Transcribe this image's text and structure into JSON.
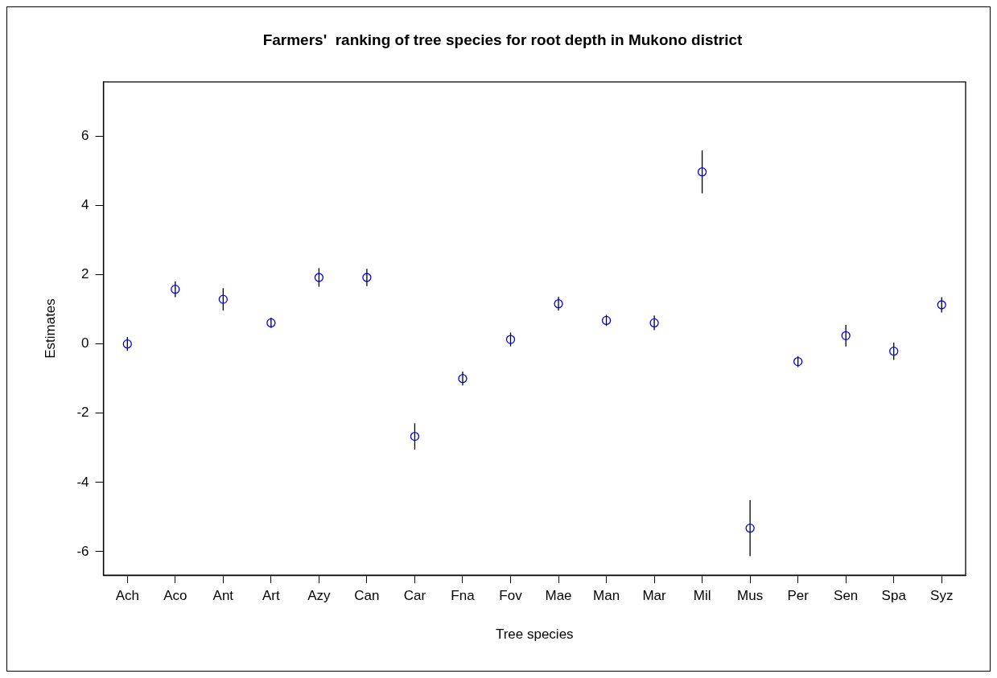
{
  "chart_data": {
    "type": "scatter",
    "title": "Farmers'  ranking of tree species for root depth in Mukono district",
    "xlabel": "Tree species",
    "ylabel": "Estimates",
    "categories": [
      "Ach",
      "Aco",
      "Ant",
      "Art",
      "Azy",
      "Can",
      "Car",
      "Fna",
      "Fov",
      "Mae",
      "Man",
      "Mar",
      "Mil",
      "Mus",
      "Per",
      "Sen",
      "Spa",
      "Syz"
    ],
    "series": [
      {
        "color": "#0000ff",
        "values": [
          0,
          1.58,
          1.29,
          0.61,
          1.92,
          1.92,
          -2.67,
          -1.0,
          0.13,
          1.16,
          0.68,
          0.61,
          4.97,
          -5.32,
          -0.51,
          0.24,
          -0.21,
          1.13
        ],
        "errors": [
          0.2,
          0.23,
          0.32,
          0.15,
          0.27,
          0.25,
          0.38,
          0.2,
          0.2,
          0.2,
          0.16,
          0.21,
          0.62,
          0.81,
          0.16,
          0.31,
          0.25,
          0.22
        ]
      }
    ],
    "ylim": [
      -6.68,
      7.57
    ],
    "yticks": [
      -6,
      -4,
      -2,
      0,
      2,
      4,
      6
    ],
    "marker": "circle",
    "grid": false,
    "legend": false
  }
}
